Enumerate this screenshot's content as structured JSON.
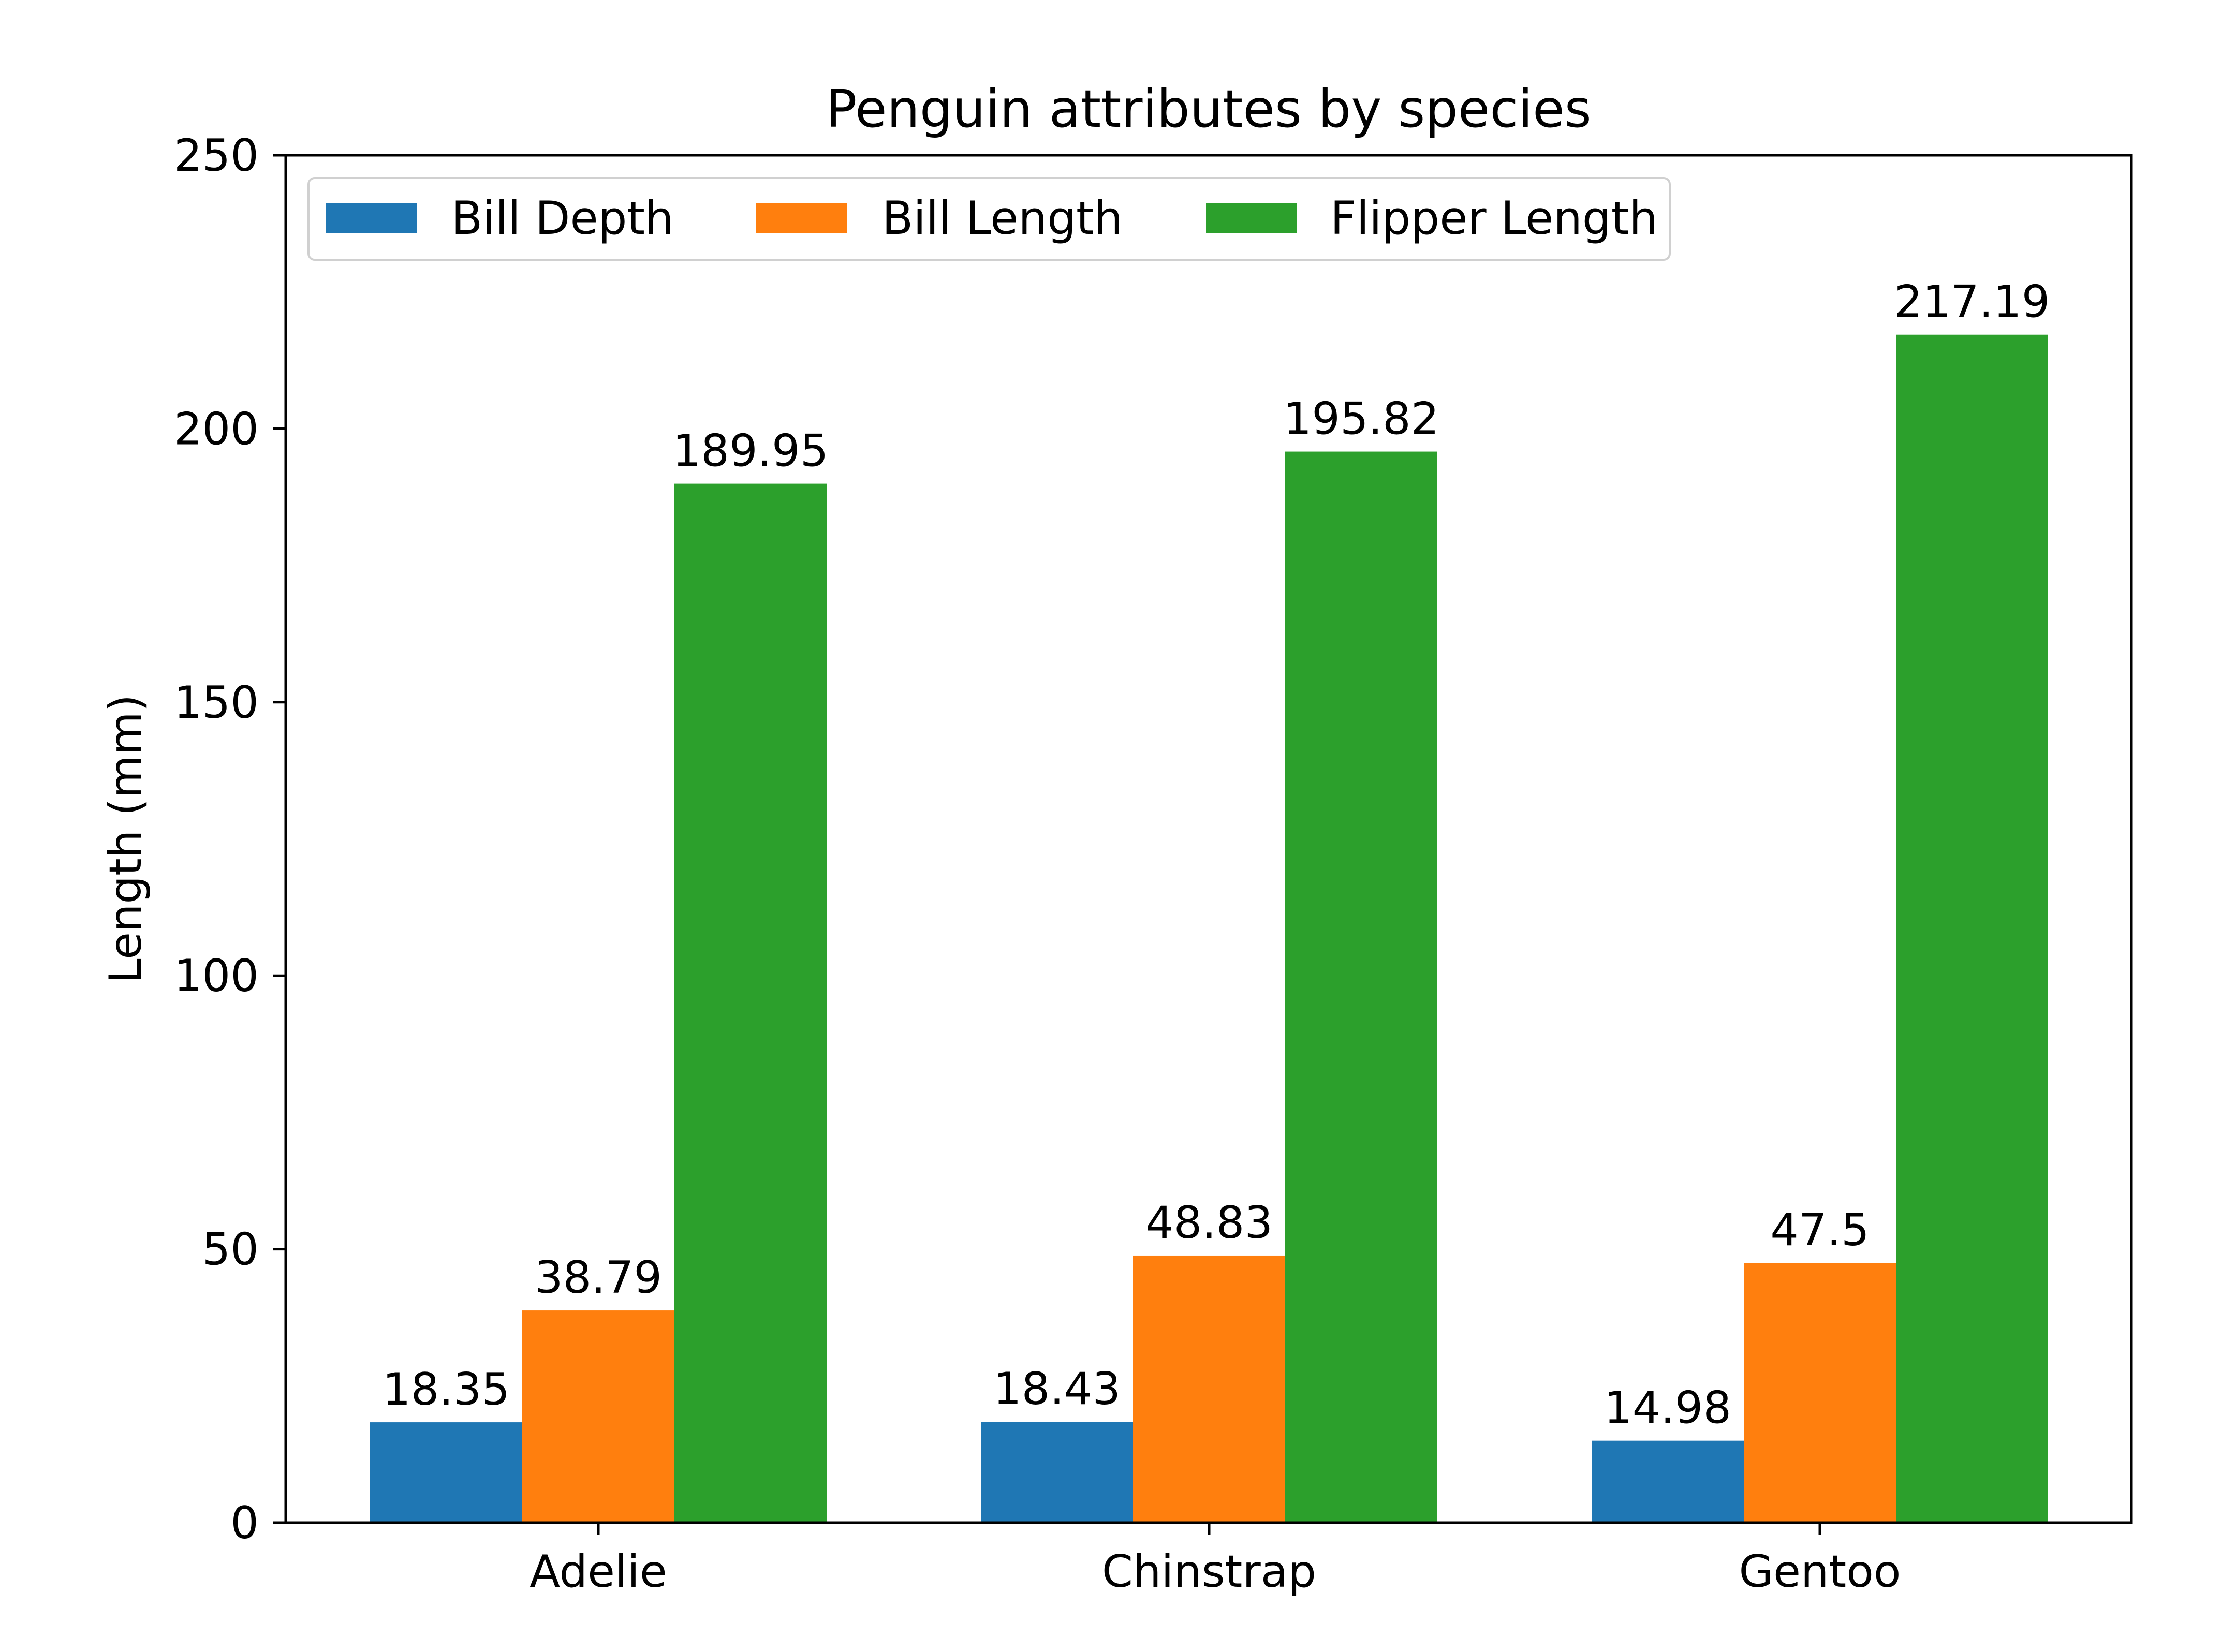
{
  "chart_data": {
    "type": "bar",
    "title": "Penguin attributes by species",
    "xlabel": "",
    "ylabel": "Length (mm)",
    "categories": [
      "Adelie",
      "Chinstrap",
      "Gentoo"
    ],
    "series": [
      {
        "name": "Bill Depth",
        "color": "#1f77b4",
        "values": [
          18.35,
          18.43,
          14.98
        ],
        "labels": [
          "18.35",
          "18.43",
          "14.98"
        ]
      },
      {
        "name": "Bill Length",
        "color": "#ff7f0e",
        "values": [
          38.79,
          48.83,
          47.5
        ],
        "labels": [
          "38.79",
          "48.83",
          "47.5"
        ]
      },
      {
        "name": "Flipper Length",
        "color": "#2ca02c",
        "values": [
          189.95,
          195.82,
          217.19
        ],
        "labels": [
          "189.95",
          "195.82",
          "217.19"
        ]
      }
    ],
    "ylim": [
      0,
      250
    ],
    "yticks": [
      0,
      50,
      100,
      150,
      200,
      250
    ],
    "ytick_labels": [
      "0",
      "50",
      "100",
      "150",
      "200",
      "250"
    ],
    "grid": false,
    "legend": {
      "placement": "upper-left",
      "columns": 3
    }
  }
}
